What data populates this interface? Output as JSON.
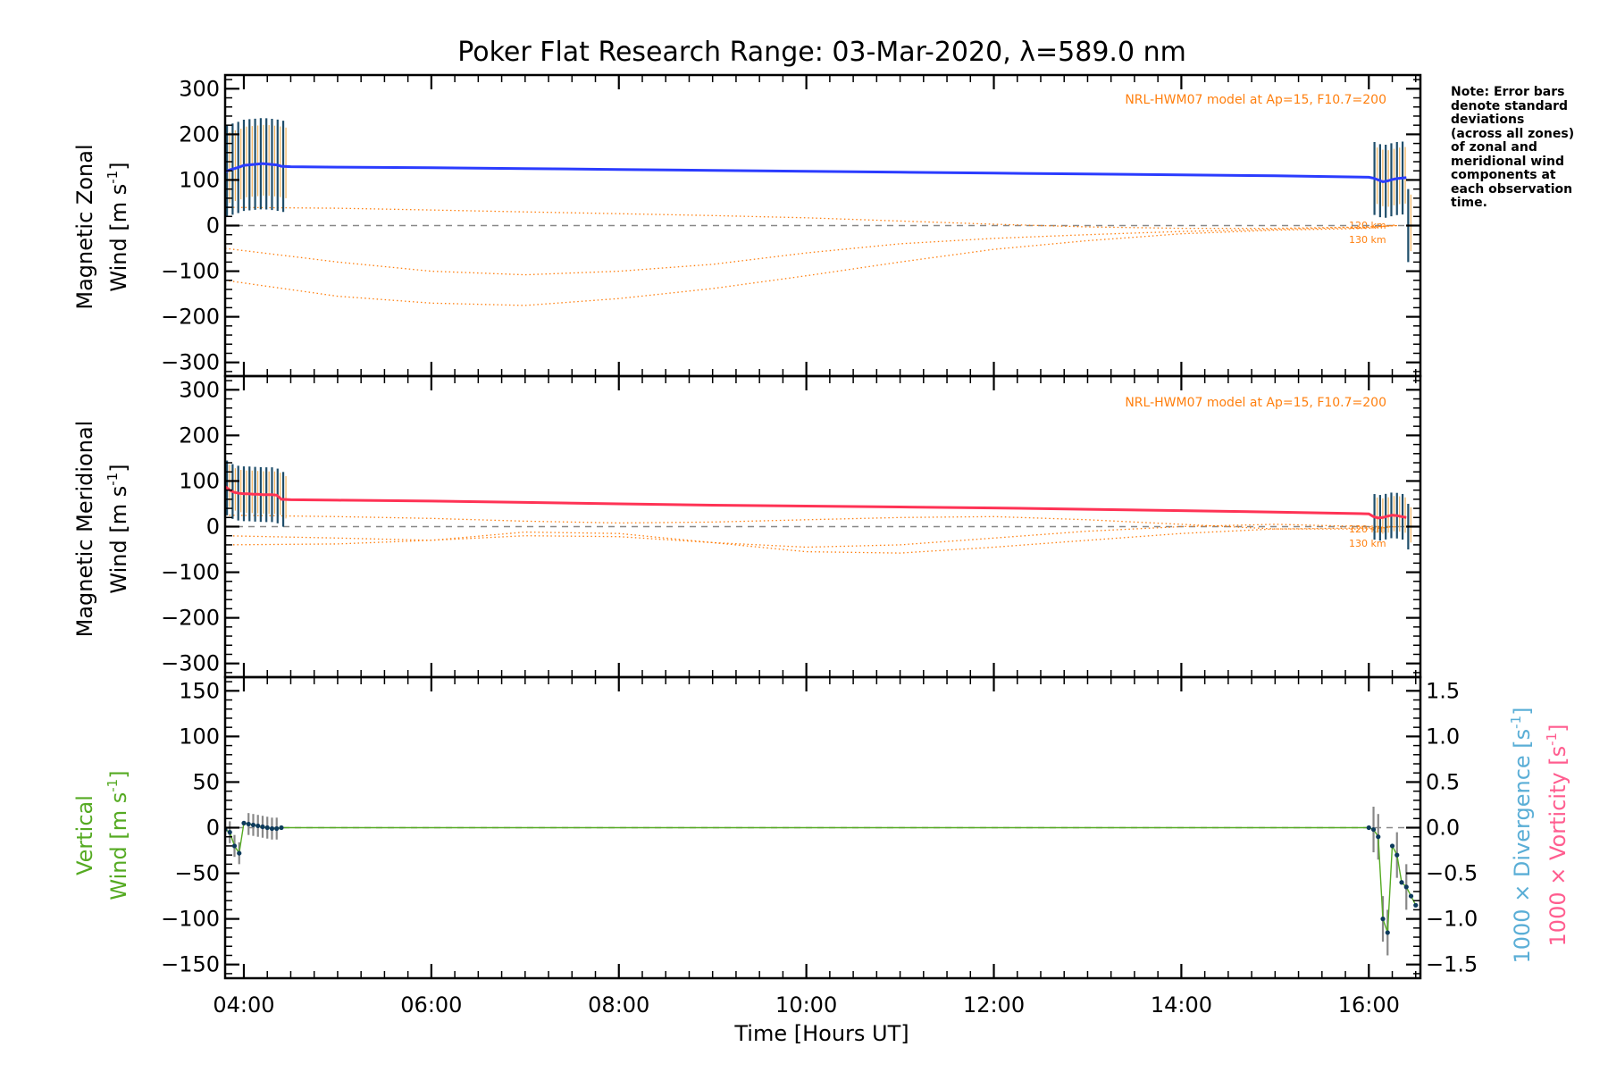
{
  "title": "Poker Flat Research Range: 03-Mar-2020, λ=589.0 nm",
  "note": "Note: Error bars\ndenote standard\ndeviations\n(across all zones)\nof zonal and\nmeridional wind\ncomponents at\neach observation\ntime.",
  "colors": {
    "zonal": "#2b3cff",
    "meridional": "#ff3355",
    "vertical": "#55aa22",
    "model": "#ff7f0e",
    "divergence": "#5aaed6",
    "vorticity": "#ff5d8f",
    "errorbar": "#1f4e6b",
    "zero_line": "#888888"
  },
  "chart_data": [
    {
      "type": "line",
      "id": "zonal",
      "ylabel_line1": "Magnetic Zonal",
      "ylabel_line2": "Wind [m s",
      "ylabel_exp": "-1",
      "ylabel_close": "]",
      "model_label": "NRL-HWM07 model at Ap=15, F10.7=200",
      "model_alt_labels": [
        "120 km",
        "130 km"
      ],
      "ylim": [
        -330,
        330
      ],
      "yticks": [
        -300,
        -200,
        -100,
        0,
        100,
        200,
        300
      ],
      "tick_labels": [
        "−300",
        "−200",
        "−100",
        "0",
        "100",
        "200",
        "300"
      ],
      "series": [
        {
          "x": [
            3.8,
            3.85,
            3.9,
            3.95,
            4.0,
            4.05,
            4.1,
            4.15,
            4.2,
            4.25,
            4.3,
            4.35,
            4.4,
            4.5,
            5.0,
            6.0,
            7.0,
            8.0,
            9.0,
            10.0,
            11.0,
            12.0,
            13.0,
            14.0,
            15.0,
            16.0,
            16.05,
            16.1,
            16.15,
            16.2,
            16.25,
            16.3,
            16.35,
            16.4
          ],
          "values": [
            118,
            122,
            125,
            128,
            132,
            133,
            134,
            135,
            136,
            135,
            134,
            133,
            130,
            129,
            128,
            127,
            125,
            123,
            121,
            119,
            117,
            115,
            113,
            111,
            109,
            106,
            104,
            100,
            96,
            98,
            101,
            103,
            104,
            105
          ]
        }
      ],
      "model_series": [
        {
          "x": [
            3.8,
            5.0,
            6.0,
            7.0,
            8.0,
            9.0,
            10.0,
            11.0,
            12.0,
            13.0,
            14.0,
            15.0,
            16.0,
            16.3
          ],
          "values": [
            40,
            38,
            34,
            30,
            26,
            22,
            17,
            10,
            3,
            -3,
            -6,
            -6,
            -3,
            0
          ]
        },
        {
          "x": [
            3.8,
            5.0,
            6.0,
            7.0,
            8.0,
            9.0,
            10.0,
            11.0,
            12.0,
            13.0,
            14.0,
            15.0,
            16.0,
            16.3
          ],
          "values": [
            -50,
            -80,
            -100,
            -108,
            -100,
            -85,
            -60,
            -40,
            -28,
            -20,
            -13,
            -8,
            -4,
            0
          ]
        },
        {
          "x": [
            3.8,
            5.0,
            6.0,
            7.0,
            8.0,
            9.0,
            10.0,
            11.0,
            12.0,
            13.0,
            14.0,
            15.0,
            16.0,
            16.3
          ],
          "values": [
            -120,
            -155,
            -170,
            -175,
            -160,
            -138,
            -110,
            -80,
            -52,
            -33,
            -18,
            -10,
            -6,
            2
          ]
        }
      ],
      "error_bars": [
        {
          "x": [
            3.82,
            3.88,
            3.94,
            4.0,
            4.06,
            4.12,
            4.18,
            4.24,
            4.3,
            4.36,
            4.42
          ],
          "half_width": 100
        },
        {
          "x": [
            16.06,
            16.12,
            16.18,
            16.24,
            16.3,
            16.36,
            16.42
          ],
          "half_width": 80
        }
      ]
    },
    {
      "type": "line",
      "id": "meridional",
      "ylabel_line1": "Magnetic Meridional",
      "ylabel_line2": "Wind [m s",
      "ylabel_exp": "-1",
      "ylabel_close": "]",
      "model_label": "NRL-HWM07 model at Ap=15, F10.7=200",
      "model_alt_labels": [
        "120 km",
        "130 km"
      ],
      "ylim": [
        -330,
        330
      ],
      "yticks": [
        -300,
        -200,
        -100,
        0,
        100,
        200,
        300
      ],
      "tick_labels": [
        "−300",
        "−200",
        "−100",
        "0",
        "100",
        "200",
        "300"
      ],
      "series": [
        {
          "x": [
            3.8,
            3.85,
            3.9,
            3.95,
            4.0,
            4.05,
            4.1,
            4.15,
            4.2,
            4.25,
            4.3,
            4.35,
            4.4,
            4.5,
            5.0,
            6.0,
            7.0,
            8.0,
            9.0,
            10.0,
            11.0,
            12.0,
            13.0,
            14.0,
            15.0,
            16.0,
            16.05,
            16.1,
            16.15,
            16.2,
            16.25,
            16.3,
            16.35,
            16.4
          ],
          "values": [
            88,
            80,
            75,
            73,
            72,
            72,
            71,
            71,
            70,
            70,
            70,
            69,
            60,
            59,
            58,
            56,
            53,
            50,
            47,
            45,
            43,
            41,
            38,
            35,
            32,
            28,
            22,
            19,
            20,
            23,
            25,
            24,
            22,
            20
          ]
        }
      ],
      "model_series": [
        {
          "x": [
            3.8,
            5.0,
            6.0,
            7.0,
            8.0,
            9.0,
            10.0,
            11.0,
            12.0,
            13.0,
            14.0,
            15.0,
            16.0,
            16.3
          ],
          "values": [
            25,
            22,
            18,
            12,
            8,
            10,
            15,
            20,
            22,
            15,
            5,
            -5,
            -5,
            0
          ]
        },
        {
          "x": [
            3.8,
            5.0,
            6.0,
            7.0,
            8.0,
            9.0,
            10.0,
            11.0,
            12.0,
            13.0,
            14.0,
            15.0,
            16.0,
            16.3
          ],
          "values": [
            -20,
            -25,
            -30,
            -20,
            -22,
            -35,
            -45,
            -40,
            -25,
            -10,
            0,
            5,
            0,
            0
          ]
        },
        {
          "x": [
            3.8,
            5.0,
            6.0,
            7.0,
            8.0,
            9.0,
            10.0,
            11.0,
            12.0,
            13.0,
            14.0,
            15.0,
            16.0,
            16.3
          ],
          "values": [
            -40,
            -38,
            -30,
            -12,
            -15,
            -35,
            -55,
            -58,
            -45,
            -30,
            -15,
            -5,
            -3,
            0
          ]
        }
      ],
      "error_bars": [
        {
          "x": [
            3.82,
            3.88,
            3.94,
            4.0,
            4.06,
            4.12,
            4.18,
            4.24,
            4.3,
            4.36,
            4.42
          ],
          "half_width": 60
        },
        {
          "x": [
            16.06,
            16.12,
            16.18,
            16.24,
            16.3,
            16.36,
            16.42
          ],
          "half_width": 50
        }
      ]
    },
    {
      "type": "line",
      "id": "vertical",
      "ylabel_line1": "Vertical",
      "ylabel_line2": "Wind [m s",
      "ylabel_exp": "-1",
      "ylabel_close": "]",
      "right_label_divergence": "1000 × Divergence [s",
      "right_label_vorticity": "1000 × Vorticity [s",
      "right_label_exp": "-1",
      "right_label_close": "]",
      "xlabel": "Time [Hours UT]",
      "ylim": [
        -165,
        165
      ],
      "yticks": [
        -150,
        -100,
        -50,
        0,
        50,
        100,
        150
      ],
      "tick_labels": [
        "−150",
        "−100",
        "−50",
        "0",
        "50",
        "100",
        "150"
      ],
      "y2lim": [
        -1.65,
        1.65
      ],
      "y2ticks": [
        -1.5,
        -1.0,
        -0.5,
        0.0,
        0.5,
        1.0,
        1.5
      ],
      "y2tick_labels": [
        "−1.5",
        "−1.0",
        "−0.5",
        "0.0",
        "0.5",
        "1.0",
        "1.5"
      ],
      "xlim": [
        3.8,
        16.55
      ],
      "xticks": [
        4,
        6,
        8,
        10,
        12,
        14,
        16
      ],
      "xtick_labels": [
        "04:00",
        "06:00",
        "08:00",
        "10:00",
        "12:00",
        "14:00",
        "16:00"
      ],
      "series": [
        {
          "x": [
            3.8,
            3.85,
            3.9,
            3.95,
            4.0,
            4.05,
            4.1,
            4.15,
            4.2,
            4.25,
            4.3,
            4.35,
            4.4,
            10.0,
            16.0,
            16.05,
            16.1,
            16.15,
            16.2,
            16.25,
            16.3,
            16.35,
            16.4,
            16.45,
            16.5
          ],
          "values": [
            -2,
            -5,
            -20,
            -28,
            5,
            4,
            3,
            2,
            1,
            0,
            -1,
            -1,
            0,
            0,
            0,
            -2,
            -10,
            -100,
            -115,
            -20,
            -30,
            -60,
            -65,
            -75,
            -85
          ]
        }
      ],
      "error_bars": [
        {
          "x": [
            3.85,
            3.9,
            3.95,
            4.05,
            4.1,
            4.15,
            4.2,
            4.25,
            4.3,
            4.35
          ],
          "half_width": 12
        },
        {
          "x": [
            16.05,
            16.1,
            16.15,
            16.2,
            16.3,
            16.4
          ],
          "half_width": 25
        }
      ]
    }
  ]
}
